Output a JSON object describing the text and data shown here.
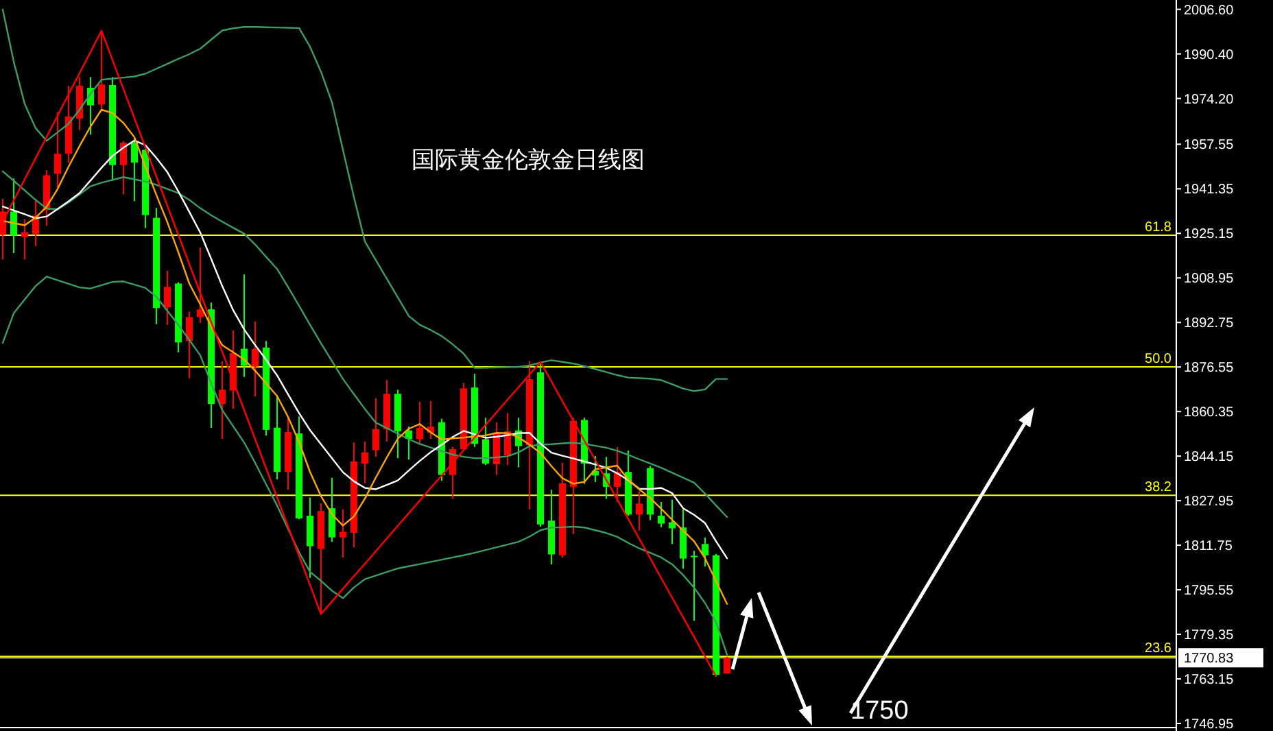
{
  "chart_data": {
    "type": "candlestick",
    "title": "国际黄金伦敦金日线图",
    "categories": [
      null,
      null,
      null,
      null,
      null,
      null,
      null,
      null,
      null,
      null,
      null,
      null,
      null,
      null,
      null,
      null,
      null,
      null,
      null,
      null,
      null,
      null,
      null,
      null,
      null,
      null,
      null,
      null,
      null,
      null,
      null,
      null,
      null,
      null,
      null,
      null,
      null,
      null,
      null,
      null,
      null,
      null,
      null,
      null,
      null,
      null,
      null,
      null,
      null,
      null,
      null,
      null,
      null,
      null,
      null,
      null,
      null,
      null,
      null,
      null,
      null,
      null,
      null,
      null,
      null,
      null,
      null
    ],
    "ohlc": [
      [
        1924.6,
        1937.7,
        1915.6,
        1933.1
      ],
      [
        1933.1,
        1945.1,
        1918.0,
        1924.3
      ],
      [
        1923.8,
        1930.3,
        1915.6,
        1925.6
      ],
      [
        1924.9,
        1937.7,
        1920.5,
        1931.6
      ],
      [
        1933.6,
        1948.1,
        1927.9,
        1946.3
      ],
      [
        1946.8,
        1969.2,
        1941.8,
        1954.1
      ],
      [
        1954.1,
        1978.8,
        1950.9,
        1967.6
      ],
      [
        1966.9,
        1982.0,
        1962.7,
        1978.8
      ],
      [
        1978.1,
        1982.0,
        1961.0,
        1971.7
      ],
      [
        1972.0,
        1998.8,
        1970.5,
        1979.3
      ],
      [
        1979.1,
        1982.0,
        1944.3,
        1950.0
      ],
      [
        1950.0,
        1958.7,
        1939.4,
        1958.1
      ],
      [
        1958.1,
        1959.9,
        1936.9,
        1950.9
      ],
      [
        1955.5,
        1956.6,
        1927.1,
        1931.8
      ],
      [
        1930.8,
        1934.4,
        1892.1,
        1898.0
      ],
      [
        1898.3,
        1911.5,
        1891.8,
        1905.7
      ],
      [
        1906.9,
        1907.4,
        1881.9,
        1885.5
      ],
      [
        1886.0,
        1896.7,
        1872.4,
        1894.7
      ],
      [
        1894.7,
        1920.0,
        1892.6,
        1897.5
      ],
      [
        1897.5,
        1900.0,
        1854.4,
        1863.1
      ],
      [
        1863.1,
        1878.6,
        1850.4,
        1868.3
      ],
      [
        1868.0,
        1889.8,
        1861.4,
        1881.6
      ],
      [
        1883.2,
        1910.2,
        1872.9,
        1877.0
      ],
      [
        1876.7,
        1893.1,
        1865.8,
        1883.2
      ],
      [
        1883.6,
        1886.0,
        1851.6,
        1853.7
      ],
      [
        1854.5,
        1866.3,
        1835.7,
        1838.4
      ],
      [
        1838.4,
        1858.6,
        1831.9,
        1852.9
      ],
      [
        1852.4,
        1858.6,
        1821.2,
        1821.5
      ],
      [
        1822.5,
        1829.1,
        1799.9,
        1811.4
      ],
      [
        1810.4,
        1827.0,
        1786.7,
        1824.2
      ],
      [
        1825.2,
        1836.3,
        1813.0,
        1814.6
      ],
      [
        1814.6,
        1824.8,
        1807.3,
        1816.6
      ],
      [
        1816.3,
        1849.1,
        1811.0,
        1842.2
      ],
      [
        1841.4,
        1849.4,
        1834.3,
        1845.5
      ],
      [
        1846.3,
        1865.2,
        1843.9,
        1854.0
      ],
      [
        1854.0,
        1871.8,
        1849.4,
        1866.8
      ],
      [
        1866.8,
        1868.3,
        1843.4,
        1853.2
      ],
      [
        1853.5,
        1854.9,
        1842.9,
        1850.4
      ],
      [
        1850.4,
        1863.9,
        1848.3,
        1854.4
      ],
      [
        1852.7,
        1864.2,
        1850.4,
        1854.9
      ],
      [
        1856.5,
        1857.7,
        1835.2,
        1837.3
      ],
      [
        1837.3,
        1847.5,
        1828.6,
        1846.7
      ],
      [
        1846.7,
        1870.8,
        1846.2,
        1868.8
      ],
      [
        1869.1,
        1874.1,
        1847.5,
        1848.6
      ],
      [
        1850.3,
        1858.1,
        1840.9,
        1841.4
      ],
      [
        1841.2,
        1856.5,
        1837.3,
        1852.4
      ],
      [
        1844.5,
        1859.8,
        1840.9,
        1853.2
      ],
      [
        1853.5,
        1858.1,
        1840.1,
        1847.8
      ],
      [
        1848.1,
        1878.7,
        1824.8,
        1872.1
      ],
      [
        1874.6,
        1878.4,
        1818.5,
        1819.3
      ],
      [
        1820.7,
        1831.9,
        1804.8,
        1808.4
      ],
      [
        1808.1,
        1841.7,
        1807.3,
        1834.3
      ],
      [
        1833.0,
        1858.1,
        1815.8,
        1857.0
      ],
      [
        1857.3,
        1858.1,
        1834.0,
        1841.4
      ],
      [
        1838.8,
        1844.2,
        1834.7,
        1837.1
      ],
      [
        1837.9,
        1843.9,
        1828.6,
        1833.0
      ],
      [
        1833.0,
        1847.5,
        1827.5,
        1838.4
      ],
      [
        1838.4,
        1846.2,
        1822.5,
        1822.9
      ],
      [
        1822.9,
        1831.4,
        1817.1,
        1826.9
      ],
      [
        1839.8,
        1840.6,
        1820.9,
        1822.9
      ],
      [
        1822.5,
        1827.5,
        1818.3,
        1819.6
      ],
      [
        1820.1,
        1828.3,
        1812.2,
        1817.9
      ],
      [
        1818.2,
        1824.8,
        1803.2,
        1806.9
      ],
      [
        1807.9,
        1809.7,
        1784.3,
        1807.6
      ],
      [
        1812.2,
        1814.6,
        1804.0,
        1808.1
      ],
      [
        1808.1,
        1808.6,
        1764.1,
        1764.6
      ],
      [
        1765.1,
        1771.2,
        1765.1,
        1770.8
      ]
    ],
    "colors": [
      "#ff0000",
      "#00ff00",
      "#ff0000",
      "#ff0000",
      "#ff0000",
      "#ff0000",
      "#ff0000",
      "#ff0000",
      "#00ff00",
      "#ff0000",
      "#00ff00",
      "#ff0000",
      "#00ff00",
      "#00ff00",
      "#00ff00",
      "#ff0000",
      "#00ff00",
      "#ff0000",
      "#ff0000",
      "#00ff00",
      "#ff0000",
      "#ff0000",
      "#00ff00",
      "#ff0000",
      "#00ff00",
      "#00ff00",
      "#ff0000",
      "#00ff00",
      "#00ff00",
      "#ff0000",
      "#00ff00",
      "#ff0000",
      "#ff0000",
      "#ff0000",
      "#ff0000",
      "#ff0000",
      "#00ff00",
      "#00ff00",
      "#ff0000",
      "#ff0000",
      "#00ff00",
      "#ff0000",
      "#ff0000",
      "#00ff00",
      "#00ff00",
      "#ff0000",
      "#ff0000",
      "#00ff00",
      "#ff0000",
      "#00ff00",
      "#00ff00",
      "#ff0000",
      "#ff0000",
      "#00ff00",
      "#00ff00",
      "#00ff00",
      "#ff0000",
      "#00ff00",
      "#ff0000",
      "#00ff00",
      "#00ff00",
      "#00ff00",
      "#00ff00",
      "#00ff00",
      "#00ff00",
      "#00ff00",
      "#ff0000"
    ],
    "ylim": [
      1745.7,
      2010.0
    ],
    "yticks": [
      {
        "value": 2006.6,
        "label": "2006.60"
      },
      {
        "value": 1990.4,
        "label": "1990.40"
      },
      {
        "value": 1974.2,
        "label": "1974.20"
      },
      {
        "value": 1957.55,
        "label": "1957.55"
      },
      {
        "value": 1941.35,
        "label": "1941.35"
      },
      {
        "value": 1925.15,
        "label": "1925.15"
      },
      {
        "value": 1908.95,
        "label": "1908.95"
      },
      {
        "value": 1892.75,
        "label": "1892.75"
      },
      {
        "value": 1876.55,
        "label": "1876.55"
      },
      {
        "value": 1860.35,
        "label": "1860.35"
      },
      {
        "value": 1844.15,
        "label": "1844.15"
      },
      {
        "value": 1827.95,
        "label": "1827.95"
      },
      {
        "value": 1811.75,
        "label": "1811.75"
      },
      {
        "value": 1795.55,
        "label": "1795.55"
      },
      {
        "value": 1779.35,
        "label": "1779.35"
      },
      {
        "value": 1763.15,
        "label": "1763.15"
      },
      {
        "value": 1746.95,
        "label": "1746.95"
      }
    ],
    "tick_labels": "y",
    "series": [
      {
        "type": "line",
        "color": "#3c9c64",
        "values": [
          2006.5,
          1987.6,
          1972.2,
          1963.4,
          1958.8,
          1961.9,
          1965.0,
          1970.1,
          1975.9,
          1981.0,
          1981.4,
          1981.8,
          1982.2,
          1983.2,
          1985.0,
          1986.8,
          1988.6,
          1990.3,
          1992.3,
          1995.6,
          1998.9,
          1999.7,
          2000.2,
          2000.2,
          2000.1,
          2000.0,
          1999.9,
          1999.8,
          1993.0,
          1983.9,
          1972.8,
          1955.5,
          1938.3,
          1922.2,
          1915.4,
          1908.6,
          1901.9,
          1895.1,
          1891.9,
          1890.0,
          1887.8,
          1884.8,
          1881.4,
          1876.2,
          1876.3,
          1876.4,
          1876.5,
          1876.6,
          1877.1,
          1878.2,
          1879.0,
          1878.4,
          1877.8,
          1876.9,
          1875.8,
          1874.7,
          1873.6,
          1872.7,
          1872.5,
          1872.3,
          1871.8,
          1870.3,
          1868.7,
          1867.8,
          1868.4,
          1872.2,
          1872.2
        ]
      },
      {
        "type": "line",
        "color": "#3c9c64",
        "values": [
          1947.7,
          1944.3,
          1940.8,
          1937.3,
          1934.2,
          1933.9,
          1936.4,
          1939.3,
          1942.3,
          1943.6,
          1944.6,
          1945.6,
          1944.8,
          1944.0,
          1942.8,
          1941.3,
          1939.8,
          1937.3,
          1934.3,
          1931.7,
          1929.4,
          1927.2,
          1925.0,
          1921.1,
          1916.6,
          1912.2,
          1905.6,
          1898.8,
          1891.9,
          1885.2,
          1878.7,
          1872.2,
          1866.7,
          1861.3,
          1856.3,
          1854.3,
          1852.3,
          1850.3,
          1848.6,
          1847.3,
          1846.0,
          1844.7,
          1843.9,
          1843.4,
          1843.4,
          1843.7,
          1844.1,
          1845.5,
          1847.8,
          1848.3,
          1848.5,
          1848.8,
          1849.0,
          1848.6,
          1847.9,
          1847.2,
          1846.1,
          1844.6,
          1843.0,
          1841.5,
          1839.9,
          1838.1,
          1836.3,
          1834.5,
          1830.5,
          1826.2,
          1822.0
        ]
      },
      {
        "type": "line",
        "color": "#3c9c64",
        "values": [
          1885.3,
          1896.1,
          1901.1,
          1906.0,
          1909.4,
          1908.1,
          1906.8,
          1905.5,
          1905.1,
          1906.3,
          1907.5,
          1907.7,
          1906.5,
          1905.3,
          1902.1,
          1897.0,
          1891.9,
          1886.4,
          1880.8,
          1870.6,
          1860.9,
          1855.0,
          1849.1,
          1841.7,
          1833.9,
          1826.2,
          1817.7,
          1809.2,
          1802.1,
          1798.8,
          1795.2,
          1792.5,
          1796.4,
          1799.4,
          1800.7,
          1802.0,
          1803.3,
          1804.1,
          1804.9,
          1805.7,
          1806.5,
          1807.3,
          1808.1,
          1809.0,
          1810.0,
          1811.0,
          1812.0,
          1813.0,
          1814.9,
          1817.2,
          1818.2,
          1818.3,
          1818.5,
          1818.2,
          1817.2,
          1816.2,
          1814.8,
          1812.6,
          1810.6,
          1809.0,
          1807.3,
          1804.8,
          1800.9,
          1796.3,
          1790.7,
          1783.8,
          1772.0
        ]
      },
      {
        "type": "line",
        "color": "#ffffff",
        "values": [
          1934.9,
          1933.5,
          1932.1,
          1930.6,
          1931.3,
          1934.0,
          1936.8,
          1939.8,
          1944.4,
          1949.0,
          1953.3,
          1956.3,
          1958.9,
          1957.2,
          1952.6,
          1947.4,
          1940.4,
          1933.0,
          1925.4,
          1915.8,
          1906.0,
          1897.2,
          1890.2,
          1884.5,
          1879.2,
          1873.5,
          1866.6,
          1859.8,
          1853.6,
          1848.5,
          1843.4,
          1838.3,
          1835.0,
          1832.6,
          1832.1,
          1833.7,
          1835.3,
          1838.9,
          1842.4,
          1845.6,
          1848.3,
          1851.1,
          1853.3,
          1852.1,
          1850.8,
          1851.2,
          1851.8,
          1852.5,
          1852.6,
          1848.7,
          1845.4,
          1844.3,
          1843.3,
          1842.2,
          1841.1,
          1839.9,
          1837.9,
          1835.4,
          1832.3,
          1832.2,
          1832.6,
          1830.7,
          1825.2,
          1822.8,
          1819.8,
          1813.2,
          1807.0
        ]
      },
      {
        "type": "line",
        "color": "#ffa500",
        "values": [
          1929.7,
          1928.9,
          1928.1,
          1930.9,
          1934.8,
          1941.3,
          1949.4,
          1956.9,
          1964.0,
          1970.1,
          1968.9,
          1965.3,
          1960.1,
          1949.4,
          1939.1,
          1929.2,
          1918.3,
          1906.9,
          1899.3,
          1891.2,
          1884.5,
          1881.9,
          1879.3,
          1875.2,
          1870.6,
          1866.0,
          1858.4,
          1849.3,
          1838.4,
          1829.6,
          1823.0,
          1818.9,
          1822.2,
          1828.7,
          1836.4,
          1843.7,
          1850.5,
          1854.1,
          1855.8,
          1852.8,
          1850.2,
          1850.6,
          1850.9,
          1851.3,
          1851.7,
          1852.6,
          1852.5,
          1851.0,
          1848.3,
          1845.3,
          1840.5,
          1836.1,
          1834.1,
          1834.8,
          1839.4,
          1840.0,
          1840.7,
          1835.6,
          1832.1,
          1828.9,
          1825.0,
          1821.0,
          1817.1,
          1813.2,
          1807.0,
          1798.7,
          1790.4
        ]
      },
      {
        "type": "line",
        "color": "#ff0000",
        "values": [
          1929.4,
          1937.1,
          1944.8,
          1952.5,
          1960.2,
          1968.0,
          1975.7,
          1983.4,
          1991.1,
          1998.8,
          1988.2,
          1977.6,
          1967.0,
          1956.4,
          1945.8,
          1935.2,
          1924.6,
          1914.0,
          1903.4,
          1892.8,
          1882.1,
          1871.5,
          1860.9,
          1850.3,
          1839.7,
          1829.1,
          1818.5,
          1807.9,
          1797.3,
          1786.7,
          1791.3,
          1795.9,
          1800.5,
          1805.0,
          1809.6,
          1814.2,
          1818.8,
          1823.4,
          1828.0,
          1832.6,
          1837.1,
          1841.7,
          1846.3,
          1850.9,
          1855.5,
          1860.1,
          1864.7,
          1869.2,
          1873.8,
          1878.4,
          1871.3,
          1864.1,
          1857.0,
          1849.8,
          1842.7,
          1835.5,
          1828.4,
          1821.3,
          1814.1,
          1807.0,
          1799.8,
          1792.7,
          1785.5,
          1778.4,
          1771.2,
          1764.1,
          null
        ]
      }
    ],
    "ref_lines": [
      {
        "axis": "y",
        "value": 1924.5,
        "color": "#ffff00"
      },
      {
        "axis": "y",
        "value": 1876.6,
        "color": "#ffff00"
      },
      {
        "axis": "y",
        "value": 1829.9,
        "color": "#ffff00"
      },
      {
        "axis": "y",
        "value": 1771.3,
        "color": "#ffff00"
      },
      {
        "axis": "y",
        "value": 1770.83,
        "label": "1770.83",
        "color": "#c0c0c0"
      }
    ],
    "annotations": [
      "1750",
      {
        "text": "61.8",
        "y": 1924.5
      },
      {
        "text": "50.0",
        "y": 1876.6
      },
      {
        "text": "38.2",
        "y": 1829.9
      },
      {
        "text": "23.6",
        "y": 1771.3
      }
    ]
  }
}
